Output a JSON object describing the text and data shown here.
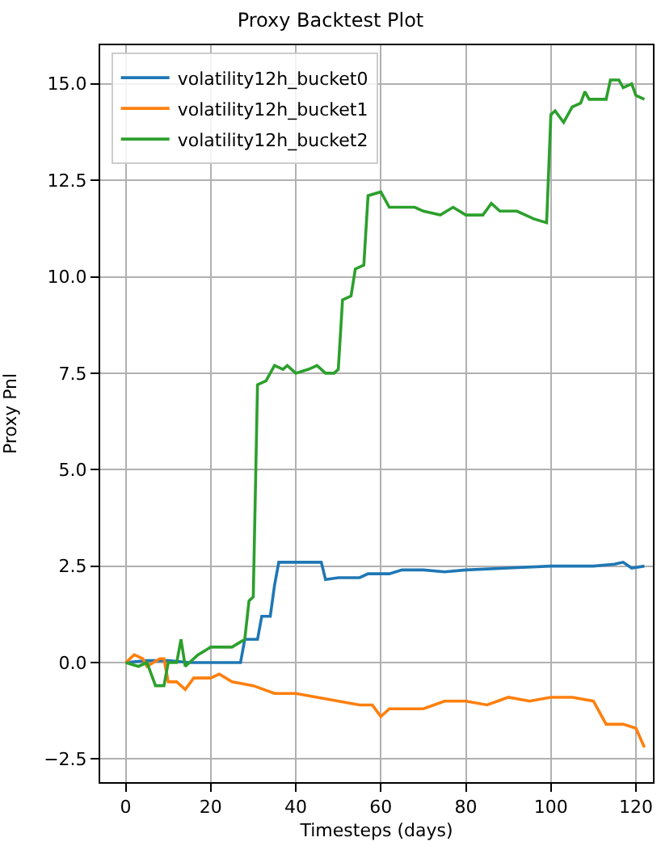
{
  "chart_data": {
    "type": "line",
    "title": "Proxy Backtest Plot",
    "xlabel": "Timesteps (days)",
    "ylabel": "Proxy Pnl",
    "series": [
      {
        "name": "volatility12h_bucket0",
        "color": "#1f77b4",
        "x": [
          0,
          5,
          10,
          15,
          20,
          27,
          28,
          31,
          32,
          34,
          35,
          36,
          38,
          46,
          47,
          50,
          55,
          57,
          62,
          65,
          70,
          75,
          80,
          90,
          100,
          110,
          115,
          117,
          119,
          122
        ],
        "values": [
          0,
          0.05,
          0.05,
          0,
          0,
          0,
          0.6,
          0.6,
          1.2,
          1.2,
          2.0,
          2.6,
          2.6,
          2.6,
          2.15,
          2.2,
          2.2,
          2.3,
          2.3,
          2.4,
          2.4,
          2.35,
          2.4,
          2.45,
          2.5,
          2.5,
          2.55,
          2.6,
          2.45,
          2.5
        ]
      },
      {
        "name": "volatility12h_bucket1",
        "color": "#ff7f0e",
        "x": [
          0,
          2,
          4,
          5,
          8,
          9,
          10,
          12,
          14,
          16,
          20,
          22,
          25,
          30,
          35,
          40,
          45,
          50,
          55,
          58,
          60,
          62,
          65,
          70,
          75,
          80,
          85,
          90,
          95,
          100,
          105,
          110,
          113,
          117,
          120,
          122
        ],
        "values": [
          0,
          0.2,
          0.1,
          -0.1,
          0.1,
          0.1,
          -0.5,
          -0.5,
          -0.7,
          -0.4,
          -0.4,
          -0.3,
          -0.5,
          -0.6,
          -0.8,
          -0.8,
          -0.9,
          -1.0,
          -1.1,
          -1.1,
          -1.4,
          -1.2,
          -1.2,
          -1.2,
          -1.0,
          -1.0,
          -1.1,
          -0.9,
          -1.0,
          -0.9,
          -0.9,
          -1.0,
          -1.6,
          -1.6,
          -1.7,
          -2.2
        ]
      },
      {
        "name": "volatility12h_bucket2",
        "color": "#2ca02c",
        "x": [
          0,
          3,
          5,
          7,
          9,
          10,
          12,
          13,
          14,
          17,
          20,
          25,
          28,
          29,
          30,
          31,
          33,
          35,
          37,
          38,
          40,
          43,
          45,
          47,
          49,
          50,
          51,
          53,
          54,
          56,
          57,
          60,
          62,
          68,
          70,
          74,
          77,
          80,
          84,
          86,
          88,
          92,
          96,
          99,
          100,
          101,
          103,
          105,
          107,
          108,
          109,
          113,
          114,
          116,
          117,
          119,
          120,
          122
        ],
        "values": [
          0,
          -0.1,
          0,
          -0.6,
          -0.6,
          0,
          0,
          0.6,
          -0.1,
          0.2,
          0.4,
          0.4,
          0.6,
          1.6,
          1.7,
          7.2,
          7.3,
          7.7,
          7.6,
          7.7,
          7.5,
          7.6,
          7.7,
          7.5,
          7.5,
          7.6,
          9.4,
          9.5,
          10.2,
          10.3,
          12.1,
          12.2,
          11.8,
          11.8,
          11.7,
          11.6,
          11.8,
          11.6,
          11.6,
          11.9,
          11.7,
          11.7,
          11.5,
          11.4,
          14.2,
          14.3,
          14.0,
          14.4,
          14.5,
          14.8,
          14.6,
          14.6,
          15.1,
          15.1,
          14.9,
          15.0,
          14.7,
          14.6
        ]
      }
    ],
    "xlim": [
      -6,
      124
    ],
    "xticks": [
      0,
      20,
      40,
      60,
      80,
      100,
      120
    ],
    "ylim": [
      -3.1,
      16.0
    ],
    "yticks": [
      {
        "value": -2.5,
        "label": "−2.5"
      },
      {
        "value": 0,
        "label": "0.0"
      },
      {
        "value": 2.5,
        "label": "2.5"
      },
      {
        "value": 5,
        "label": "5.0"
      },
      {
        "value": 7.5,
        "label": "7.5"
      },
      {
        "value": 10,
        "label": "10.0"
      },
      {
        "value": 12.5,
        "label": "12.5"
      },
      {
        "value": 15,
        "label": "15.0"
      }
    ],
    "grid": true,
    "legend": "top left"
  }
}
